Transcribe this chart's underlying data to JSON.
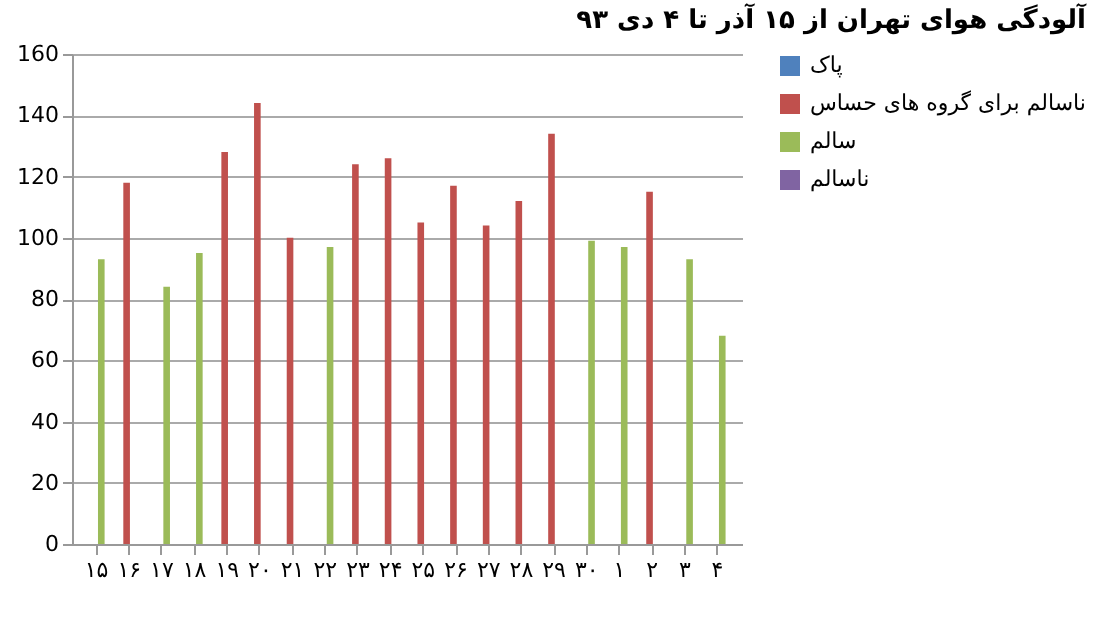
{
  "chart_data": {
    "type": "bar",
    "title": "آلودگی هوای تهران از ۱۵ آذر تا ۴ دی ۹۳",
    "categories": [
      "۱۵",
      "۱۶",
      "۱۷",
      "۱۸",
      "۱۹",
      "۲۰",
      "۲۱",
      "۲۲",
      "۲۳",
      "۲۴",
      "۲۵",
      "۲۶",
      "۲۷",
      "۲۸",
      "۲۹",
      "۳۰",
      "۱",
      "۲",
      "۳",
      "۴"
    ],
    "series": [
      {
        "name": "پاک",
        "color": "#4f81bd",
        "values": [
          null,
          null,
          null,
          null,
          null,
          null,
          null,
          null,
          null,
          null,
          null,
          null,
          null,
          null,
          null,
          null,
          null,
          null,
          null,
          null
        ]
      },
      {
        "name": "ناسالم برای گروه های حساس",
        "color": "#c0504d",
        "values": [
          null,
          118,
          null,
          null,
          128,
          144,
          100,
          null,
          124,
          126,
          105,
          117,
          104,
          112,
          134,
          null,
          null,
          115,
          null,
          null
        ]
      },
      {
        "name": "سالم",
        "color": "#9bbb59",
        "values": [
          93,
          null,
          84,
          95,
          null,
          null,
          null,
          97,
          null,
          null,
          null,
          null,
          null,
          null,
          null,
          99,
          97,
          null,
          93,
          68
        ]
      },
      {
        "name": "ناسالم",
        "color": "#8064a2",
        "values": [
          null,
          null,
          null,
          null,
          null,
          null,
          null,
          null,
          null,
          null,
          null,
          null,
          null,
          null,
          null,
          null,
          null,
          null,
          null,
          null
        ]
      }
    ],
    "ylim": [
      0,
      160
    ],
    "yticks": [
      0,
      20,
      40,
      60,
      80,
      100,
      120,
      140,
      160
    ],
    "grid": "y",
    "legend": "right"
  }
}
